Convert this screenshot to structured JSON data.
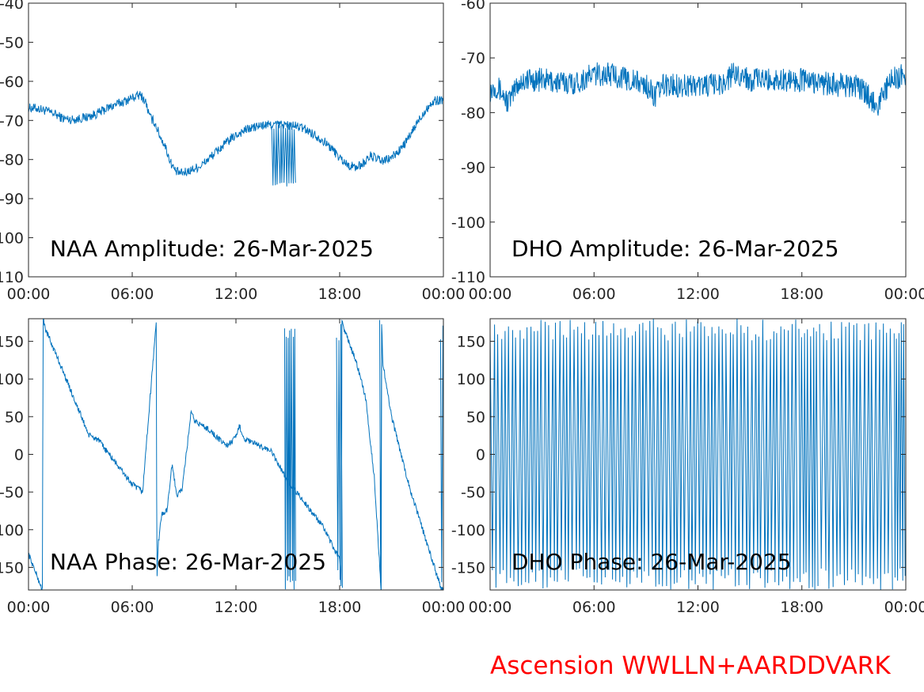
{
  "footer": {
    "text": "Ascension WWLLN+AARDDVARK",
    "color": "#ff0000"
  },
  "style": {
    "line_color": "#0072bd",
    "axis_color": "#262626"
  },
  "chart_data": [
    {
      "id": "naa-amp",
      "type": "line",
      "title": "NAA Amplitude: 26-Mar-2025",
      "xlim": [
        0,
        24
      ],
      "ylim": [
        -110,
        -40
      ],
      "x_ticks": [
        0,
        6,
        12,
        18,
        24
      ],
      "x_tick_labels": [
        "00:00",
        "06:00",
        "12:00",
        "18:00",
        "00:00"
      ],
      "y_ticks": [
        -110,
        -100,
        -90,
        -80,
        -70,
        -60,
        -50,
        -40
      ],
      "y_tick_labels": [
        "-110",
        "-100",
        "-90",
        "-80",
        "-70",
        "-60",
        "-50",
        "-40"
      ],
      "x": [
        0,
        0.5,
        1,
        1.5,
        2,
        2.5,
        3,
        3.5,
        4,
        4.5,
        5,
        5.5,
        6,
        6.5,
        6.8,
        7.0,
        7.3,
        7.6,
        7.9,
        8.2,
        8.5,
        8.8,
        9,
        9.5,
        10,
        10.5,
        11,
        11.5,
        12,
        12.5,
        13,
        13.5,
        14,
        14.5,
        15,
        15.5,
        16,
        16.5,
        17,
        17.5,
        18,
        18.5,
        19,
        19.5,
        19.8,
        20.2,
        20.5,
        21,
        21.5,
        22,
        22.5,
        23,
        23.5,
        24
      ],
      "y": [
        -66.8,
        -66.9,
        -67.5,
        -68.3,
        -69.5,
        -69.8,
        -69.5,
        -69.0,
        -68.2,
        -67.0,
        -66.0,
        -65.2,
        -64.2,
        -63.5,
        -65.5,
        -69.0,
        -70.5,
        -74.0,
        -76.5,
        -80.5,
        -83.0,
        -83.5,
        -83.4,
        -82.5,
        -81.5,
        -79.5,
        -77.5,
        -75.5,
        -73.8,
        -72.5,
        -71.8,
        -71.3,
        -71.1,
        -71.0,
        -71.2,
        -71.5,
        -72.2,
        -73.5,
        -75.0,
        -77.0,
        -79.5,
        -81.5,
        -82.0,
        -80.5,
        -79.0,
        -80.0,
        -80.5,
        -79.5,
        -77.5,
        -74.5,
        -70.5,
        -67.0,
        -65.0,
        -64.6
      ],
      "band": 1.2,
      "dropouts": {
        "x_start": 14.05,
        "x_end": 15.5,
        "low": -87,
        "high": -71,
        "count": 22
      }
    },
    {
      "id": "dho-amp",
      "type": "line",
      "title": "DHO Amplitude: 26-Mar-2025",
      "xlim": [
        0,
        24
      ],
      "ylim": [
        -110,
        -60
      ],
      "x_ticks": [
        0,
        6,
        12,
        18,
        24
      ],
      "x_tick_labels": [
        "00:00",
        "06:00",
        "12:00",
        "18:00",
        "00:00"
      ],
      "y_ticks": [
        -110,
        -100,
        -90,
        -80,
        -70,
        -60
      ],
      "y_tick_labels": [
        "-110",
        "-100",
        "-90",
        "-80",
        "-70",
        "-60"
      ],
      "x": [
        0,
        0.3,
        0.6,
        1,
        1.3,
        1.5,
        2,
        3,
        4,
        5,
        5.3,
        6,
        7,
        8,
        9,
        9.5,
        10,
        11,
        12,
        13,
        13.5,
        14,
        14.5,
        15,
        16,
        17,
        18,
        19,
        20,
        21,
        21.5,
        22,
        22.4,
        22.8,
        23.2,
        23.6,
        24
      ],
      "y": [
        -76,
        -75,
        -76,
        -78,
        -77,
        -75,
        -74,
        -74,
        -74.5,
        -74.5,
        -74,
        -73,
        -73,
        -74,
        -75,
        -77,
        -75,
        -75,
        -75,
        -75,
        -74.5,
        -73,
        -73,
        -74,
        -74,
        -74,
        -74,
        -74.5,
        -75,
        -75,
        -76,
        -77.5,
        -78.5,
        -76,
        -74,
        -73.5,
        -73
      ],
      "band": 2.2
    },
    {
      "id": "naa-phase",
      "type": "line",
      "title": "NAA Phase: 26-Mar-2025",
      "xlim": [
        0,
        24
      ],
      "ylim": [
        -180,
        180
      ],
      "x_ticks": [
        0,
        6,
        12,
        18,
        24
      ],
      "x_tick_labels": [
        "00:00",
        "06:00",
        "12:00",
        "18:00",
        "00:00"
      ],
      "y_ticks": [
        -150,
        -100,
        -50,
        0,
        50,
        100,
        150
      ],
      "y_tick_labels": [
        "-150",
        "-100",
        "-50",
        "0",
        "50",
        "100",
        "150"
      ],
      "x": [
        0,
        0.3,
        0.8,
        0.85,
        0.9,
        1.0,
        2.0,
        3.5,
        4.0,
        5.0,
        6.0,
        6.6,
        7.4,
        7.42,
        7.5,
        7.7,
        8.0,
        8.3,
        8.6,
        8.9,
        9.1,
        9.4,
        9.6,
        9.9,
        10.5,
        11.0,
        11.5,
        12.0,
        12.2,
        12.5,
        13.0,
        14.0,
        14.5,
        15.0,
        15.5,
        16.0,
        17.0,
        18.0,
        18.1,
        18.13,
        18.2,
        19.0,
        19.5,
        20.0,
        20.4,
        20.42,
        20.5,
        21.0,
        22.0,
        23.0,
        23.9
      ],
      "y": [
        -132,
        -150,
        -180,
        180,
        175,
        165,
        110,
        25,
        20,
        -10,
        -40,
        -50,
        180,
        -180,
        -120,
        -80,
        -75,
        -15,
        -55,
        -45,
        -5,
        55,
        45,
        40,
        32,
        20,
        12,
        22,
        38,
        20,
        15,
        5,
        -15,
        -35,
        -50,
        -65,
        -95,
        -140,
        -180,
        180,
        170,
        120,
        75,
        -30,
        -180,
        180,
        120,
        50,
        -40,
        -115,
        -180
      ],
      "band": 4,
      "wraps": [
        {
          "x_start": 14.8,
          "x_end": 15.5,
          "low": -180,
          "high": 180,
          "count": 14
        },
        {
          "x_start": 17.8,
          "x_end": 18.2,
          "low": -180,
          "high": 180,
          "count": 6
        },
        {
          "x_start": 20.3,
          "x_end": 20.5,
          "low": -180,
          "high": 180,
          "count": 3
        },
        {
          "x_start": 23.8,
          "x_end": 24.0,
          "low": -180,
          "high": 180,
          "count": 3
        }
      ]
    },
    {
      "id": "dho-phase",
      "type": "line",
      "title": "DHO Phase: 26-Mar-2025",
      "xlim": [
        0,
        24
      ],
      "ylim": [
        -180,
        180
      ],
      "x_ticks": [
        0,
        6,
        12,
        18,
        24
      ],
      "x_tick_labels": [
        "00:00",
        "06:00",
        "12:00",
        "18:00",
        "00:00"
      ],
      "y_ticks": [
        -150,
        -100,
        -50,
        0,
        50,
        100,
        150
      ],
      "y_tick_labels": [
        "-150",
        "-100",
        "-50",
        "0",
        "50",
        "100",
        "150"
      ],
      "wraps": [
        {
          "x_start": 0.0,
          "x_end": 17.8,
          "low": -180,
          "high": 180,
          "count": 170
        },
        {
          "x_start": 17.8,
          "x_end": 19.0,
          "low": -180,
          "high": 180,
          "count": 14
        },
        {
          "x_start": 19.0,
          "x_end": 23.3,
          "low": -180,
          "high": 180,
          "count": 40
        },
        {
          "x_start": 23.3,
          "x_end": 24.0,
          "low": -180,
          "high": 180,
          "count": 10
        }
      ]
    }
  ]
}
